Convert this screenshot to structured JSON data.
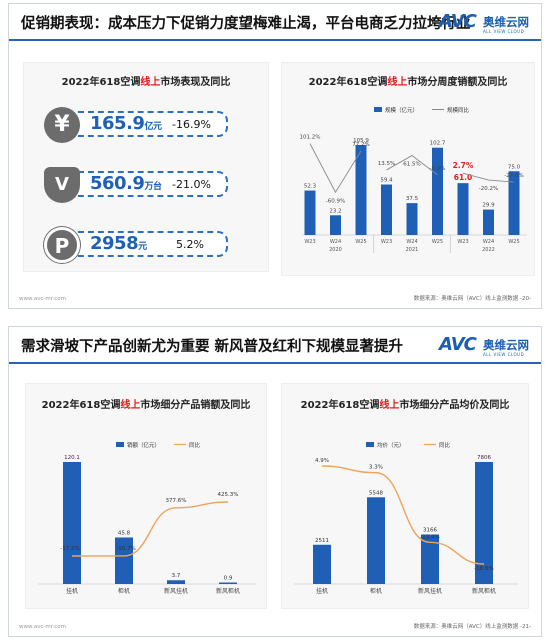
{
  "slide1": {
    "title": "促销期表现：成本压力下促销力度望梅难止渴，平台电商乏力拉垮行业",
    "logo": {
      "main": "AVC",
      "cn": "奥维云网",
      "sub": "ALL VIEW CLOUD"
    },
    "watermark": "AVC",
    "kpi_card": {
      "title_prefix": "2022年618空调",
      "title_highlight": "线上",
      "title_suffix": "市场表现及同比",
      "items": [
        {
          "icon": "yen-icon",
          "symbol": "¥",
          "value": "165.9",
          "unit": "亿元",
          "yoy": "-16.9%"
        },
        {
          "icon": "wallet-icon",
          "symbol": "V",
          "value": "560.9",
          "unit": "万台",
          "yoy": "-21.0%"
        },
        {
          "icon": "parking-icon",
          "symbol": "P",
          "value": "2958",
          "unit": "元",
          "yoy": "5.2%"
        }
      ]
    },
    "weekly_chart_title": {
      "prefix": "2022年618空调",
      "highlight": "线上",
      "suffix": "市场分周度销额及同比"
    },
    "footer_left": "www.avc-mr.com",
    "footer_right": "数据来源：奥维云网（AVC）线上监测数据",
    "page": "-20-"
  },
  "slide2": {
    "title": "需求滑坡下产品创新尤为重要 新风普及红利下规模显著提升",
    "logo": {
      "main": "AVC",
      "cn": "奥维云网",
      "sub": "ALL VIEW CLOUD"
    },
    "sales_chart_title": {
      "prefix": "2022年618空调",
      "highlight": "线上",
      "suffix": "市场细分产品销额及同比"
    },
    "price_chart_title": {
      "prefix": "2022年618空调",
      "highlight": "线上",
      "suffix": "市场细分产品均价及同比"
    },
    "footer_left": "www.avc-mr.com",
    "footer_right": "数据来源：奥维云网（AVC）线上监测数据",
    "page": "-21-"
  },
  "colors": {
    "bar": "#1f5fb5",
    "line_gray": "#8a8a8a",
    "line_orange": "#f0a35a",
    "highlight_red": "#e01e1e",
    "accent": "#2b62b6"
  },
  "chart_data": [
    {
      "type": "bar",
      "id": "weekly",
      "categories": [
        "W23",
        "W24",
        "W25",
        "W23",
        "W24",
        "W25",
        "W23",
        "W24",
        "W25"
      ],
      "groups": [
        "2020",
        "2021",
        "2022"
      ],
      "series": [
        {
          "name": "规模（亿元）",
          "type": "bar",
          "values": [
            52.3,
            23.2,
            105.9,
            59.4,
            37.5,
            102.7,
            61.0,
            29.9,
            75.0
          ]
        },
        {
          "name": "规模同比",
          "type": "line",
          "values": [
            "101.2%",
            "-60.9%",
            "77.2%",
            "13.5%",
            "61.5%",
            "-3.0%",
            "2.7%",
            "-20.2%",
            "-27.0%"
          ],
          "numeric": [
            101.2,
            -60.9,
            77.2,
            13.5,
            61.5,
            -3.0,
            2.7,
            -20.2,
            -27.0
          ]
        }
      ],
      "highlighted_labels": [
        "61.0",
        "2.7%"
      ],
      "ylim": [
        0,
        120
      ]
    },
    {
      "type": "bar",
      "id": "segment_sales",
      "categories": [
        "挂机",
        "柜机",
        "新风挂机",
        "新风柜机"
      ],
      "series": [
        {
          "name": "销额（亿元）",
          "type": "bar",
          "values": [
            120.1,
            45.8,
            3.7,
            0.9
          ]
        },
        {
          "name": "同比",
          "type": "line",
          "values": [
            "-17.2%",
            "-16.7%",
            "377.6%",
            "425.3%"
          ],
          "numeric": [
            -17.2,
            -16.7,
            377.6,
            425.3
          ]
        }
      ]
    },
    {
      "type": "bar",
      "id": "segment_price",
      "categories": [
        "挂机",
        "柜机",
        "新风挂机",
        "新风柜机"
      ],
      "series": [
        {
          "name": "均价（元）",
          "type": "bar",
          "values": [
            2511,
            5548,
            3166,
            7806
          ]
        },
        {
          "name": "同比",
          "type": "line",
          "values": [
            "4.9%",
            "3.3%",
            "-13.4%",
            "-18.6%"
          ],
          "numeric": [
            4.9,
            3.3,
            -13.4,
            -18.6
          ]
        }
      ]
    }
  ]
}
